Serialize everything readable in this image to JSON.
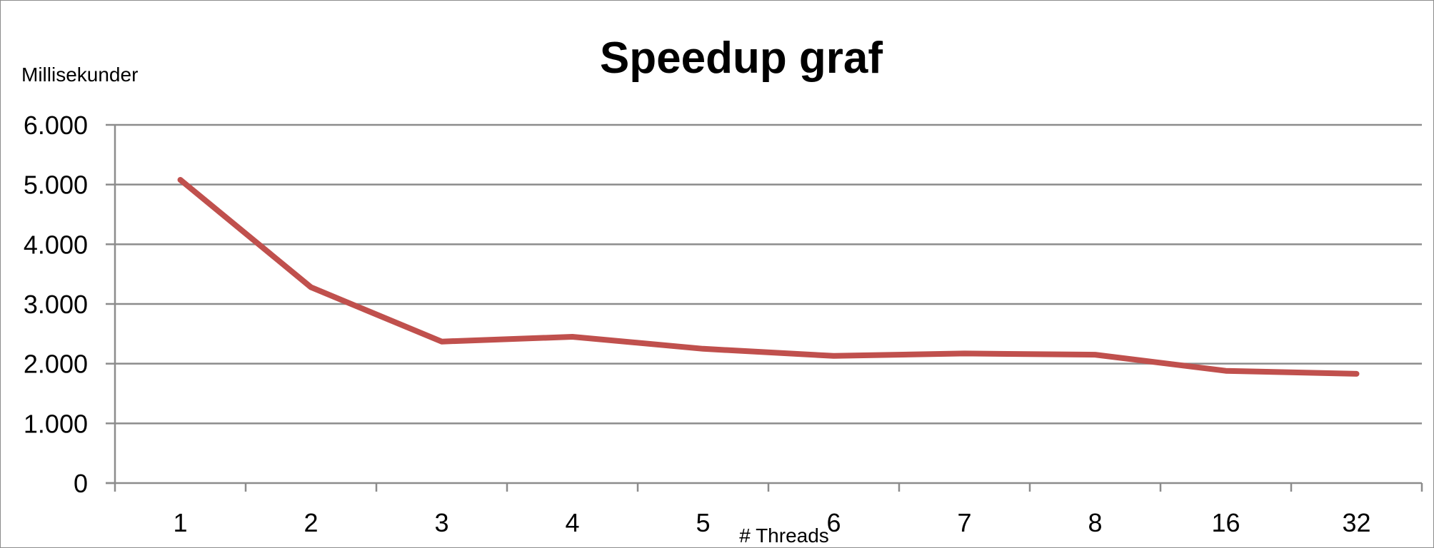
{
  "chart_data": {
    "type": "line",
    "title": "Speedup graf",
    "ylabel": "Millisekunder",
    "xlabel": "# Threads",
    "categories": [
      "1",
      "2",
      "3",
      "4",
      "5",
      "6",
      "7",
      "8",
      "16",
      "32"
    ],
    "series": [
      {
        "values": [
          5080,
          3280,
          2370,
          2450,
          2250,
          2130,
          2170,
          2150,
          1880,
          1830
        ],
        "color": "#c0504d"
      }
    ],
    "ylim": [
      0,
      6000
    ],
    "yticks": [
      0,
      1000,
      2000,
      3000,
      4000,
      5000,
      6000
    ],
    "ytick_labels": [
      "0",
      "1.000",
      "2.000",
      "3.000",
      "4.000",
      "5.000",
      "6.000"
    ],
    "grid": true,
    "legend": "none",
    "colors": {
      "gridline": "#8c8c8c",
      "axis": "#8c8c8c",
      "frame": "#8c8c8c"
    }
  }
}
